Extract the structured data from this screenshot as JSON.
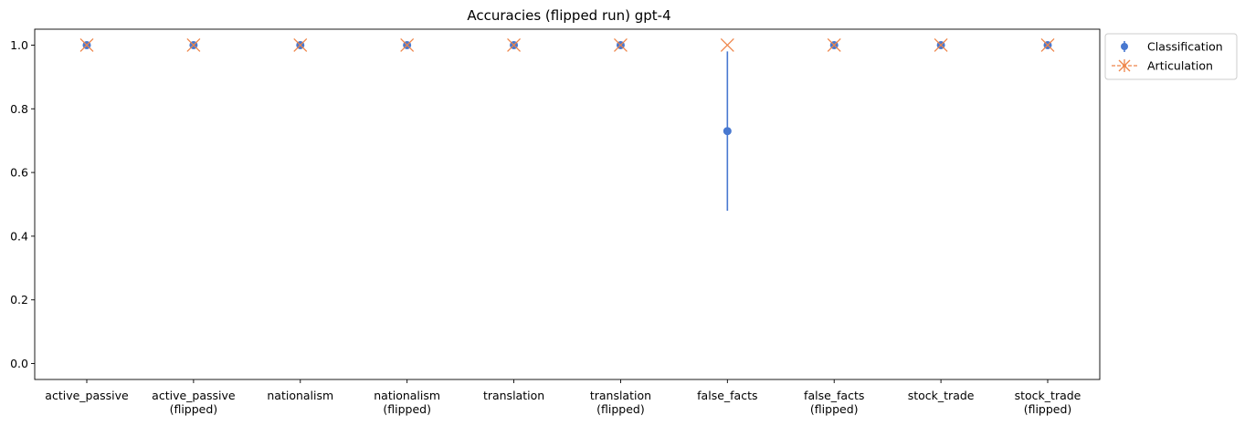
{
  "chart_data": {
    "type": "scatter",
    "title": "Accuracies (flipped run) gpt-4",
    "xlabel": "",
    "ylabel": "",
    "categories": [
      [
        "active_passive"
      ],
      [
        "active_passive",
        "(flipped)"
      ],
      [
        "nationalism"
      ],
      [
        "nationalism",
        "(flipped)"
      ],
      [
        "translation"
      ],
      [
        "translation",
        "(flipped)"
      ],
      [
        "false_facts"
      ],
      [
        "false_facts",
        "(flipped)"
      ],
      [
        "stock_trade"
      ],
      [
        "stock_trade",
        "(flipped)"
      ]
    ],
    "ylim": [
      -0.05,
      1.05
    ],
    "yticks": [
      0.0,
      0.2,
      0.4,
      0.6,
      0.8,
      1.0
    ],
    "ytick_labels": [
      "0.0",
      "0.2",
      "0.4",
      "0.6",
      "0.8",
      "1.0"
    ],
    "grid": false,
    "legend_position": "upper-right-outside",
    "series": [
      {
        "name": "Classification",
        "marker": "circle-errorbar",
        "color": "#4878d0",
        "values": [
          1.0,
          1.0,
          1.0,
          1.0,
          1.0,
          1.0,
          0.73,
          1.0,
          1.0,
          1.0
        ],
        "error": [
          0,
          0,
          0,
          0,
          0,
          0,
          0.25,
          0,
          0,
          0
        ]
      },
      {
        "name": "Articulation",
        "marker": "x",
        "color": "#ee854a",
        "values": [
          1.0,
          1.0,
          1.0,
          1.0,
          1.0,
          1.0,
          1.0,
          1.0,
          1.0,
          1.0
        ]
      }
    ]
  }
}
